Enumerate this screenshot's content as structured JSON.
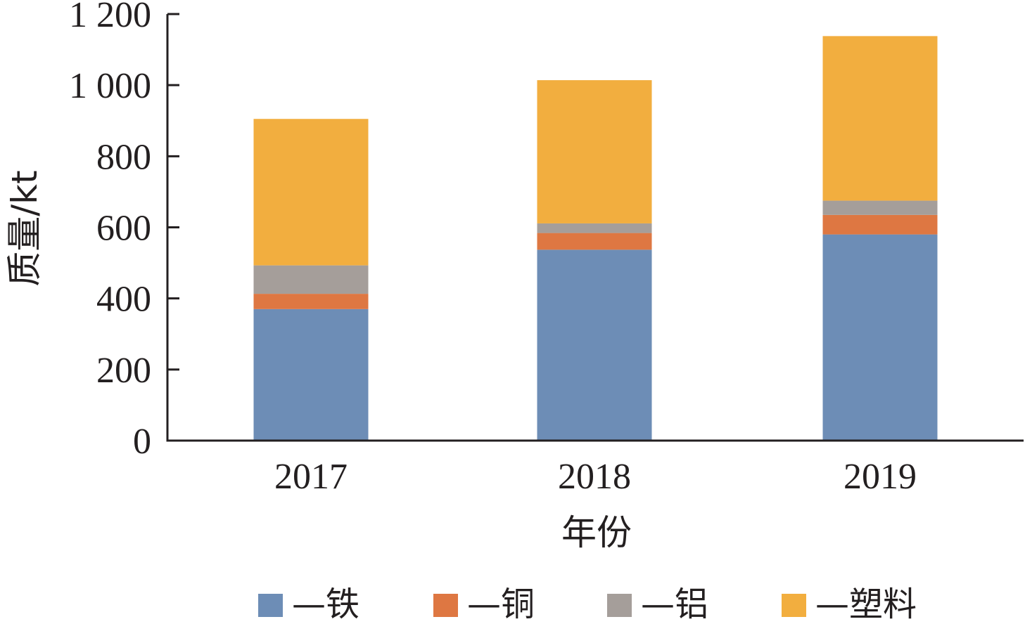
{
  "chart_data": {
    "type": "bar",
    "stacked": true,
    "categories": [
      "2017",
      "2018",
      "2019"
    ],
    "series": [
      {
        "name": "—铁",
        "color": "#6d8db6",
        "values": [
          370,
          537,
          580
        ]
      },
      {
        "name": "—铜",
        "color": "#de7742",
        "values": [
          43,
          47,
          55
        ]
      },
      {
        "name": "—铝",
        "color": "#a59e9a",
        "values": [
          80,
          27,
          40
        ]
      },
      {
        "name": "—塑料",
        "color": "#f2ae3f",
        "values": [
          412,
          403,
          463
        ]
      }
    ],
    "xlabel": "年份",
    "ylabel": "质量/kt",
    "ylim": [
      0,
      1200
    ],
    "yticks": [
      0,
      200,
      400,
      600,
      800,
      1000,
      1200
    ],
    "ytick_labels": [
      "0",
      "200",
      "400",
      "600",
      "800",
      "1 000",
      "1 200"
    ],
    "grid": false,
    "legend_position": "bottom"
  }
}
